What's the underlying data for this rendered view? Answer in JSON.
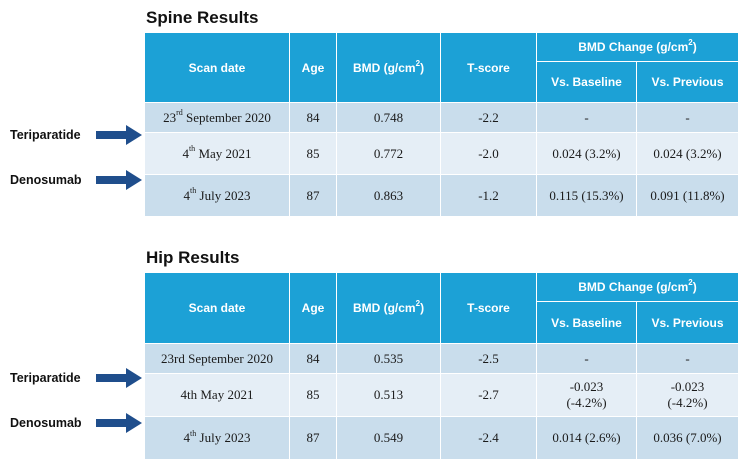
{
  "spine": {
    "title": "Spine Results",
    "headers": {
      "scan_date": "Scan date",
      "age": "Age",
      "bmd": "BMD (g/cm",
      "bmd_sup": "2",
      "bmd_close": ")",
      "t_score": "T-score",
      "bmd_change": "BMD Change (g/cm",
      "bmd_change_sup": "2",
      "bmd_change_close": ")",
      "vs_baseline": "Vs. Baseline",
      "vs_previous": "Vs. Previous"
    },
    "rows": [
      {
        "date_day": "23",
        "date_suffix": "rd",
        "date_rest": " September 2020",
        "age": "84",
        "bmd": "0.748",
        "t_score": "-2.2",
        "vs_baseline": "-",
        "vs_previous": "-"
      },
      {
        "date_day": "4",
        "date_suffix": "th",
        "date_rest": " May 2021",
        "age": "85",
        "bmd": "0.772",
        "t_score": "-2.0",
        "vs_baseline": "0.024 (3.2%)",
        "vs_previous": "0.024 (3.2%)"
      },
      {
        "date_day": "4",
        "date_suffix": "th",
        "date_rest": " July 2023",
        "age": "87",
        "bmd": "0.863",
        "t_score": "-1.2",
        "vs_baseline": "0.115 (15.3%)",
        "vs_previous": "0.091 (11.8%)"
      }
    ],
    "markers": [
      "Teriparatide",
      "Denosumab"
    ]
  },
  "hip": {
    "title": "Hip Results",
    "headers": {
      "scan_date": "Scan date",
      "age": "Age",
      "bmd": "BMD (g/cm",
      "bmd_sup": "2",
      "bmd_close": ")",
      "t_score": "T-score",
      "bmd_change": "BMD Change (g/cm",
      "bmd_change_sup": "2",
      "bmd_change_close": ")",
      "vs_baseline": "Vs. Baseline",
      "vs_previous": "Vs. Previous"
    },
    "rows": [
      {
        "date": "23rd September 2020",
        "age": "84",
        "bmd": "0.535",
        "t_score": "-2.5",
        "vs_baseline": "-",
        "vs_previous": "-"
      },
      {
        "date": "4th May 2021",
        "age": "85",
        "bmd": "0.513",
        "t_score": "-2.7",
        "vs_baseline_1": "-0.023",
        "vs_baseline_2": "(-4.2%)",
        "vs_previous_1": "-0.023",
        "vs_previous_2": "(-4.2%)"
      },
      {
        "date_day": "4",
        "date_suffix": "th",
        "date_rest": " July 2023",
        "age": "87",
        "bmd": "0.549",
        "t_score": "-2.4",
        "vs_baseline": "0.014 (2.6%)",
        "vs_previous": "0.036 (7.0%)"
      }
    ],
    "markers": [
      "Teriparatide",
      "Denosumab"
    ]
  },
  "colors": {
    "header": "#1ca1d6",
    "row_dark": "#c9ddec",
    "row_light": "#e5eef6",
    "arrow": "#1f4e8c"
  }
}
